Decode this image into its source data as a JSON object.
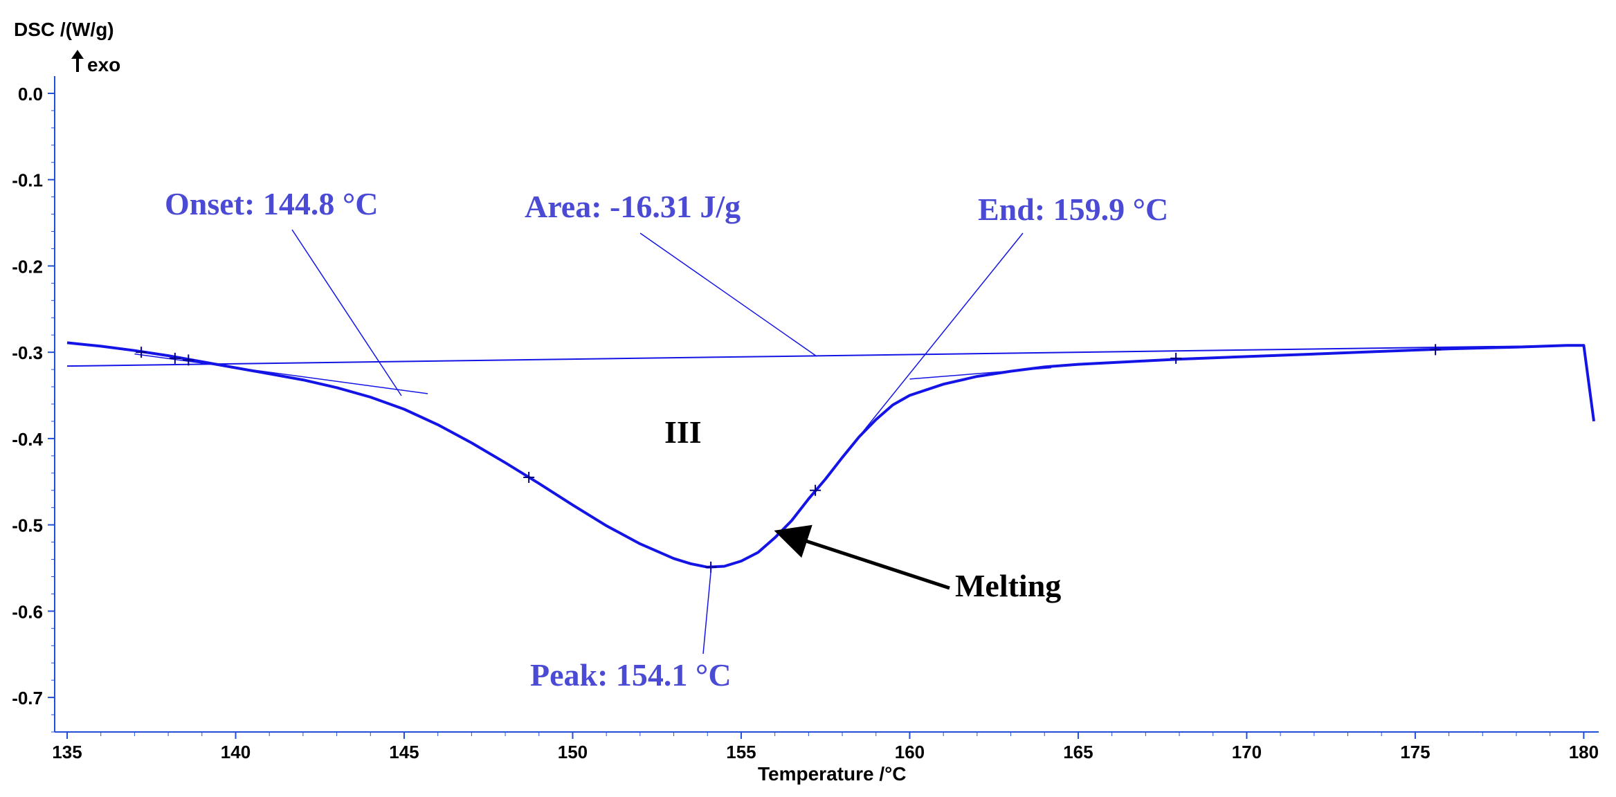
{
  "colors": {
    "curve": "#1414e6",
    "annotation": "#4a4ad4",
    "axis": "#1f4fd8",
    "text": "#000000"
  },
  "chart_data": {
    "type": "line",
    "ylabel": "DSC /(W/g)",
    "exo_label": "exo",
    "xlabel": "Temperature /°C",
    "xlim": [
      135,
      180.3
    ],
    "ylim": [
      -0.74,
      0.02
    ],
    "xticks": [
      135,
      140,
      145,
      150,
      155,
      160,
      165,
      170,
      175,
      180
    ],
    "xtick_labels": [
      "135",
      "140",
      "145",
      "150",
      "155",
      "160",
      "165",
      "170",
      "175",
      "180"
    ],
    "yticks": [
      0.0,
      -0.1,
      -0.2,
      -0.3,
      -0.4,
      -0.5,
      -0.6,
      -0.7
    ],
    "ytick_labels": [
      "0.0",
      "-0.1",
      "-0.2",
      "-0.3",
      "-0.4",
      "-0.5",
      "-0.6",
      "-0.7"
    ],
    "series": [
      {
        "x": [
          135.0,
          136.0,
          137.0,
          138.0,
          139.0,
          140.0,
          141.0,
          142.0,
          143.0,
          144.0,
          145.0,
          146.0,
          147.0,
          148.0,
          149.0,
          150.0,
          151.0,
          152.0,
          153.0,
          153.5,
          154.0,
          154.5,
          155.0,
          155.5,
          156.0,
          156.5,
          157.0,
          157.5,
          158.0,
          158.5,
          159.0,
          159.5,
          160.0,
          161.0,
          162.0,
          163.0,
          164.0,
          165.0,
          166.0,
          167.0,
          168.0,
          170.0,
          172.0,
          174.0,
          176.0,
          178.0,
          179.5,
          180.0,
          180.3
        ],
        "y": [
          -0.289,
          -0.293,
          -0.298,
          -0.304,
          -0.311,
          -0.318,
          -0.325,
          -0.332,
          -0.341,
          -0.352,
          -0.366,
          -0.384,
          -0.405,
          -0.428,
          -0.452,
          -0.477,
          -0.501,
          -0.522,
          -0.539,
          -0.545,
          -0.549,
          -0.548,
          -0.542,
          -0.532,
          -0.515,
          -0.495,
          -0.47,
          -0.447,
          -0.422,
          -0.398,
          -0.378,
          -0.361,
          -0.35,
          -0.337,
          -0.328,
          -0.322,
          -0.317,
          -0.314,
          -0.312,
          -0.31,
          -0.308,
          -0.305,
          -0.302,
          -0.299,
          -0.296,
          -0.294,
          -0.292,
          -0.292,
          -0.38
        ]
      }
    ],
    "baseline": {
      "x": [
        135.0,
        180.0
      ],
      "y": [
        -0.316,
        -0.292
      ]
    },
    "onset_tangent": {
      "x": [
        137.0,
        145.7
      ],
      "y": [
        -0.302,
        -0.348
      ]
    },
    "end_tangent": {
      "x": [
        160.0,
        164.2
      ],
      "y": [
        -0.331,
        -0.318
      ]
    },
    "markers": [
      {
        "x": 137.2,
        "y": -0.3
      },
      {
        "x": 138.2,
        "y": -0.307
      },
      {
        "x": 138.6,
        "y": -0.309
      },
      {
        "x": 148.7,
        "y": -0.445
      },
      {
        "x": 154.1,
        "y": -0.549
      },
      {
        "x": 157.2,
        "y": -0.46
      },
      {
        "x": 167.9,
        "y": -0.307
      },
      {
        "x": 175.6,
        "y": -0.297
      }
    ],
    "annotations": [
      {
        "name": "onset",
        "text": "Onset: 144.8 °C",
        "color": "#4a4ad4"
      },
      {
        "name": "area",
        "text": "Area: -16.31 J/g",
        "color": "#4a4ad4"
      },
      {
        "name": "end",
        "text": "End: 159.9 °C",
        "color": "#4a4ad4"
      },
      {
        "name": "peak",
        "text": "Peak: 154.1 °C",
        "color": "#4a4ad4"
      },
      {
        "name": "region",
        "text": "III",
        "color": "#000000"
      },
      {
        "name": "melting",
        "text": "Melting",
        "color": "#000000"
      }
    ]
  }
}
